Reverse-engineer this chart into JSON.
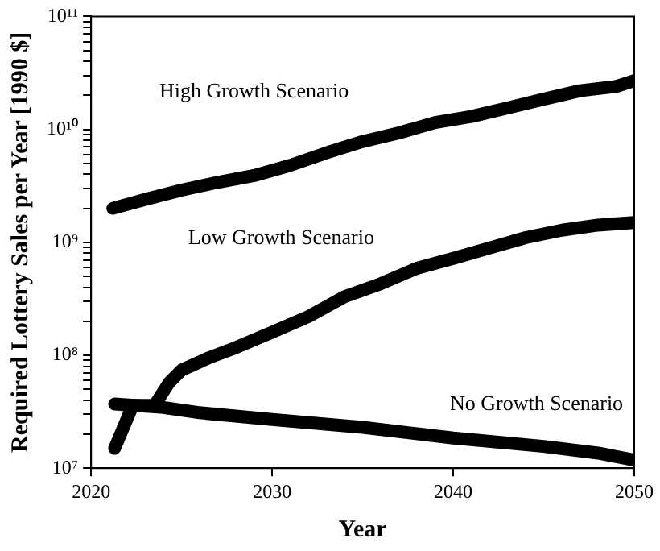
{
  "chart_data": {
    "type": "line",
    "xlabel": "Year",
    "ylabel": "Required Lottery Sales per Year [1990 $]",
    "log": "y",
    "grid": false,
    "legend": false,
    "marker": "none",
    "line_style": "solid",
    "xlim": [
      2020,
      2050
    ],
    "xticks": [
      2020,
      2030,
      2040,
      2050
    ],
    "ylim": [
      10000000,
      100000000000
    ],
    "yticks": [
      {
        "value": 10000000,
        "label": "10⁷"
      },
      {
        "value": 20000000,
        "label": null
      },
      {
        "value": 30000000,
        "label": null
      },
      {
        "value": 40000000,
        "label": null
      },
      {
        "value": 50000000,
        "label": null
      },
      {
        "value": 60000000,
        "label": null
      },
      {
        "value": 70000000,
        "label": null
      },
      {
        "value": 80000000,
        "label": null
      },
      {
        "value": 90000000,
        "label": null
      },
      {
        "value": 100000000,
        "label": "10⁸"
      },
      {
        "value": 200000000,
        "label": null
      },
      {
        "value": 300000000,
        "label": null
      },
      {
        "value": 400000000,
        "label": null
      },
      {
        "value": 500000000,
        "label": null
      },
      {
        "value": 600000000,
        "label": null
      },
      {
        "value": 700000000,
        "label": null
      },
      {
        "value": 800000000,
        "label": null
      },
      {
        "value": 900000000,
        "label": null
      },
      {
        "value": 1000000000,
        "label": "10⁹"
      },
      {
        "value": 2000000000,
        "label": null
      },
      {
        "value": 3000000000,
        "label": null
      },
      {
        "value": 4000000000,
        "label": null
      },
      {
        "value": 5000000000,
        "label": null
      },
      {
        "value": 6000000000,
        "label": null
      },
      {
        "value": 7000000000,
        "label": null
      },
      {
        "value": 8000000000,
        "label": null
      },
      {
        "value": 9000000000,
        "label": null
      },
      {
        "value": 10000000000,
        "label": "10¹⁰"
      },
      {
        "value": 20000000000,
        "label": null
      },
      {
        "value": 30000000000,
        "label": null
      },
      {
        "value": 40000000000,
        "label": null
      },
      {
        "value": 50000000000,
        "label": null
      },
      {
        "value": 60000000000,
        "label": null
      },
      {
        "value": 70000000000,
        "label": null
      },
      {
        "value": 80000000000,
        "label": null
      },
      {
        "value": 90000000000,
        "label": null
      },
      {
        "value": 100000000000,
        "label": "10¹¹"
      }
    ],
    "series": [
      {
        "name": "High Growth Scenario",
        "color": "#000000",
        "x": [
          2021.2,
          2023,
          2025,
          2027,
          2029,
          2031,
          2033,
          2035,
          2037,
          2039,
          2041,
          2043,
          2045,
          2047,
          2049,
          2050
        ],
        "values": [
          2000000000,
          2400000000,
          2900000000,
          3400000000,
          3900000000,
          4800000000,
          6200000000,
          7800000000,
          9300000000,
          11500000000,
          13000000000,
          15500000000,
          18500000000,
          22000000000,
          24000000000,
          27000000000
        ]
      },
      {
        "name": "Low Growth Scenario",
        "color": "#000000",
        "x": [
          2021.3,
          2022.3,
          2023.5,
          2024.3,
          2025,
          2026.5,
          2028,
          2030,
          2032,
          2034,
          2036,
          2038,
          2040,
          2042,
          2044,
          2046,
          2048,
          2050
        ],
        "values": [
          15000000,
          36000000,
          36000000,
          57000000,
          74000000,
          95000000,
          117000000,
          160000000,
          220000000,
          330000000,
          430000000,
          590000000,
          720000000,
          890000000,
          1100000000,
          1280000000,
          1420000000,
          1500000000
        ]
      },
      {
        "name": "No Growth Scenario",
        "color": "#000000",
        "x": [
          2021.3,
          2024,
          2026,
          2030,
          2035,
          2040,
          2045,
          2048,
          2050
        ],
        "values": [
          37000000,
          34500000,
          31000000,
          27000000,
          23000000,
          18500000,
          15600000,
          13600000,
          11800000
        ]
      }
    ]
  }
}
